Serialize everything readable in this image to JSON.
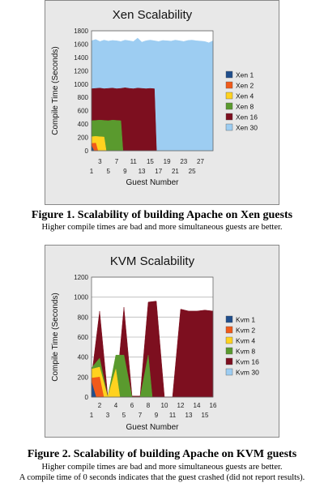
{
  "figures": [
    {
      "caption": "Figure 1. Scalability of building Apache on Xen guests",
      "notes": [
        "Higher compile times are bad and more simultaneous guests are better."
      ]
    },
    {
      "caption": "Figure 2. Scalability of building Apache on KVM guests",
      "notes": [
        "Higher compile times are bad and more simultaneous guests are better.",
        "A compile time of 0 seconds indicates that the guest crashed (did not report results)."
      ]
    }
  ],
  "chart_data": [
    {
      "type": "area",
      "title": "Xen Scalability",
      "xlabel": "Guest Number",
      "ylabel": "Compile Time (Seconds)",
      "xlim": [
        1,
        30
      ],
      "ylim": [
        0,
        1800
      ],
      "yticks": [
        0,
        200,
        400,
        600,
        800,
        1000,
        1200,
        1400,
        1600,
        1800
      ],
      "xticks_upper": [
        "3",
        "7",
        "11",
        "15",
        "19",
        "23",
        "27"
      ],
      "xticks_lower": [
        "1",
        "5",
        "9",
        "13",
        "17",
        "21",
        "25"
      ],
      "grid": true,
      "legend_position": "right",
      "colors": {
        "Xen 1": "#1f4e8c",
        "Xen 2": "#f05a1a",
        "Xen 4": "#ffd21f",
        "Xen 8": "#5a9a2e",
        "Xen 16": "#7d0f1f",
        "Xen 30": "#9dcdf2"
      },
      "series": [
        {
          "name": "Xen 30",
          "x": [
            1,
            2,
            3,
            4,
            5,
            6,
            7,
            8,
            9,
            10,
            11,
            12,
            13,
            14,
            15,
            16,
            17,
            18,
            19,
            20,
            21,
            22,
            23,
            24,
            25,
            26,
            27,
            28,
            29,
            30
          ],
          "values": [
            1650,
            1670,
            1640,
            1660,
            1645,
            1655,
            1650,
            1640,
            1660,
            1650,
            1640,
            1690,
            1630,
            1650,
            1660,
            1650,
            1640,
            1655,
            1650,
            1645,
            1660,
            1650,
            1640,
            1655,
            1660,
            1650,
            1645,
            1640,
            1620,
            1650
          ]
        },
        {
          "name": "Xen 16",
          "x": [
            1,
            2,
            3,
            4,
            5,
            6,
            7,
            8,
            9,
            10,
            11,
            12,
            13,
            14,
            15,
            16
          ],
          "values": [
            930,
            935,
            940,
            930,
            935,
            940,
            930,
            935,
            945,
            935,
            930,
            940,
            935,
            930,
            935,
            930
          ]
        },
        {
          "name": "Xen 8",
          "x": [
            1,
            2,
            3,
            4,
            5,
            6,
            7,
            8
          ],
          "values": [
            450,
            455,
            460,
            455,
            450,
            460,
            455,
            450
          ]
        },
        {
          "name": "Xen 4",
          "x": [
            1,
            2,
            3,
            4
          ],
          "values": [
            210,
            215,
            210,
            205
          ]
        },
        {
          "name": "Xen 2",
          "x": [
            1,
            2
          ],
          "values": [
            110,
            115
          ]
        },
        {
          "name": "Xen 1",
          "x": [
            1
          ],
          "values": [
            75
          ]
        }
      ]
    },
    {
      "type": "area",
      "title": "KVM Scalability",
      "xlabel": "Guest Number",
      "ylabel": "Compile Time (Seconds)",
      "xlim": [
        1,
        16
      ],
      "ylim": [
        0,
        1200
      ],
      "yticks": [
        0,
        200,
        400,
        600,
        800,
        1000,
        1200
      ],
      "xticks_upper": [
        "2",
        "4",
        "6",
        "8",
        "10",
        "12",
        "14",
        "16"
      ],
      "xticks_lower": [
        "1",
        "3",
        "5",
        "7",
        "9",
        "11",
        "13",
        "15"
      ],
      "grid": true,
      "legend_position": "right",
      "colors": {
        "Kvm 1": "#1f4e8c",
        "Kvm 2": "#f05a1a",
        "Kvm 4": "#ffd21f",
        "Kvm 8": "#5a9a2e",
        "Kvm 16": "#7d0f1f",
        "Kvm 30": "#9dcdf2"
      },
      "series": [
        {
          "name": "Kvm 30",
          "x": [],
          "values": []
        },
        {
          "name": "Kvm 16",
          "x": [
            1,
            2,
            3,
            4,
            5,
            6,
            7,
            8,
            9,
            10,
            11,
            12,
            13,
            14,
            15,
            16
          ],
          "values": [
            200,
            860,
            10,
            10,
            900,
            10,
            10,
            950,
            960,
            0,
            0,
            880,
            860,
            860,
            870,
            860
          ]
        },
        {
          "name": "Kvm 8",
          "x": [
            1,
            2,
            3,
            4,
            5,
            6,
            7,
            8
          ],
          "values": [
            290,
            390,
            0,
            420,
            420,
            0,
            0,
            420
          ]
        },
        {
          "name": "Kvm 4",
          "x": [
            1,
            2,
            3,
            4
          ],
          "values": [
            280,
            300,
            0,
            280
          ]
        },
        {
          "name": "Kvm 2",
          "x": [
            1,
            2
          ],
          "values": [
            190,
            200
          ]
        },
        {
          "name": "Kvm 1",
          "x": [
            1
          ],
          "values": [
            150
          ]
        }
      ]
    }
  ]
}
